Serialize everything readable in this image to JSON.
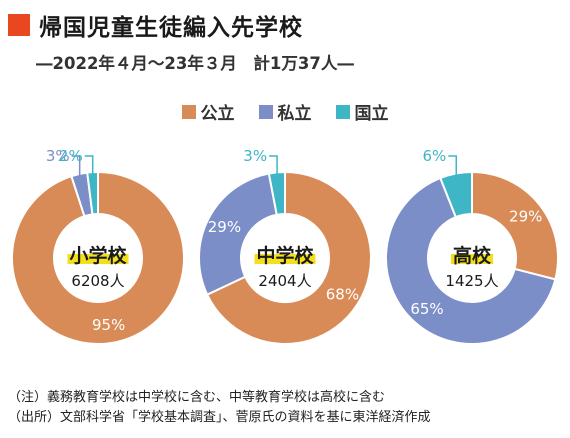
{
  "title": "帰国児童生徒編入先学校",
  "subtitle": "―2022年４月〜23年３月　計1万37人―",
  "colors": {
    "title_mark": "#e8471f",
    "public": "#d98b57",
    "private": "#7b8ec8",
    "national": "#3eb6c5",
    "highlight": "#f3e01b"
  },
  "legend": [
    {
      "label": "公立",
      "color": "#d98b57"
    },
    {
      "label": "私立",
      "color": "#7b8ec8"
    },
    {
      "label": "国立",
      "color": "#3eb6c5"
    }
  ],
  "chart_data": [
    {
      "type": "pie",
      "center_label": "小学校",
      "total": "6208人",
      "categories": [
        "公立",
        "私立",
        "国立"
      ],
      "values": [
        95,
        3,
        2
      ],
      "labels": [
        "95%",
        "3%",
        "2%"
      ]
    },
    {
      "type": "pie",
      "center_label": "中学校",
      "total": "2404人",
      "categories": [
        "公立",
        "私立",
        "国立"
      ],
      "values": [
        68,
        29,
        3
      ],
      "labels": [
        "68%",
        "29%",
        "3%"
      ]
    },
    {
      "type": "pie",
      "center_label": "高校",
      "total": "1425人",
      "categories": [
        "公立",
        "私立",
        "国立"
      ],
      "values": [
        29,
        65,
        6
      ],
      "labels": [
        "29%",
        "65%",
        "6%"
      ]
    }
  ],
  "notes": [
    "（注）義務教育学校は中学校に含む、中等教育学校は高校に含む",
    "（出所）文部科学省「学校基本調査」、菅原氏の資料を基に東洋経済作成"
  ]
}
